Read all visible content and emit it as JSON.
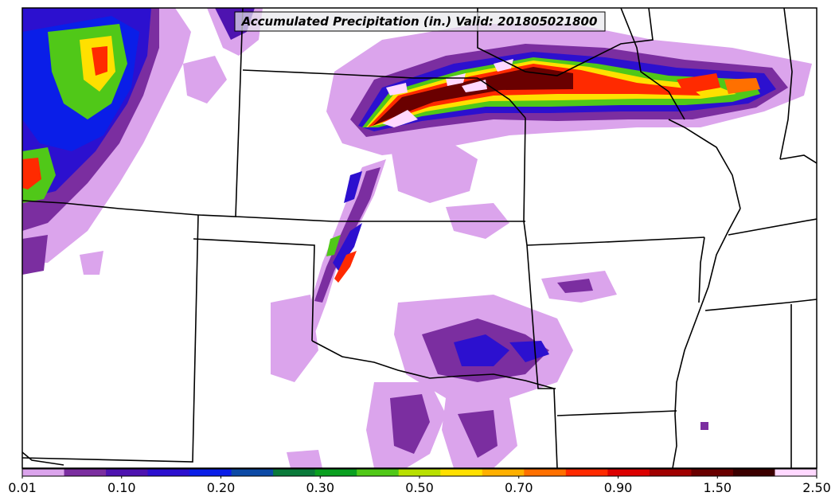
{
  "map": {
    "title": "Accumulated Precipitation (in.) Valid: 201805021800"
  },
  "colorbar": {
    "colors": [
      "#dba4ec",
      "#7b2ea0",
      "#4e13b0",
      "#2c10cf",
      "#0a1ee8",
      "#0c4aa6",
      "#0a7a3a",
      "#0aa020",
      "#50c818",
      "#b8e000",
      "#ffe000",
      "#ffb000",
      "#ff7000",
      "#ff2a00",
      "#dc0000",
      "#a00000",
      "#6a0000",
      "#3c0000",
      "#ffd8ff"
    ],
    "ticks": [
      {
        "label": "0.01",
        "index": 0
      },
      {
        "label": "0.10",
        "index": 2
      },
      {
        "label": "0.20",
        "index": 4
      },
      {
        "label": "0.30",
        "index": 6
      },
      {
        "label": "0.50",
        "index": 8
      },
      {
        "label": "0.70",
        "index": 10
      },
      {
        "label": "0.90",
        "index": 12
      },
      {
        "label": "1.50",
        "index": 14
      },
      {
        "label": "2.50",
        "index": 16
      }
    ]
  }
}
